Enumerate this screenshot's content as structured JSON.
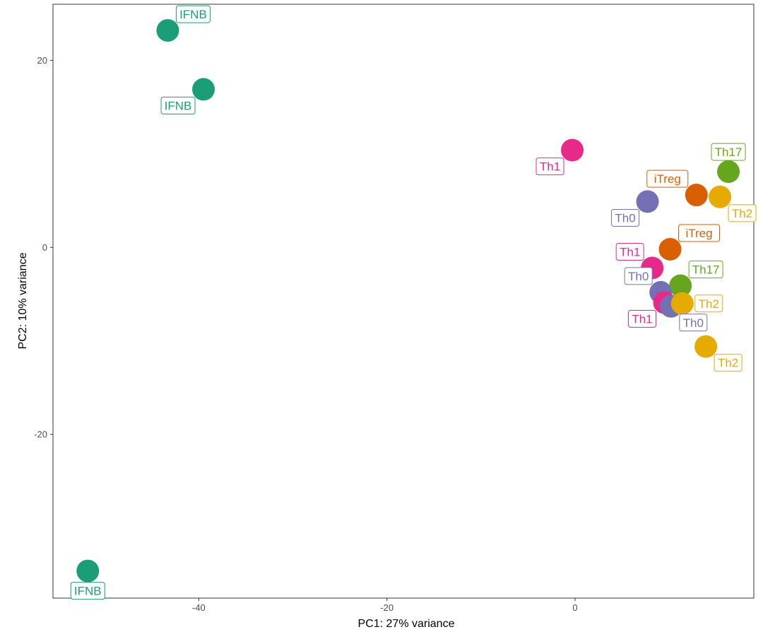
{
  "chart_data": {
    "type": "scatter",
    "title": "",
    "xlabel": "PC1: 27% variance",
    "ylabel": "PC2: 10% variance",
    "xlim": [
      -55.5,
      19
    ],
    "ylim": [
      -37.5,
      26
    ],
    "x_ticks": [
      {
        "value": -40,
        "label": "-40"
      },
      {
        "value": -20,
        "label": "-20"
      },
      {
        "value": 0,
        "label": "0"
      }
    ],
    "y_ticks": [
      {
        "value": 20,
        "label": "20"
      },
      {
        "value": 0,
        "label": "0"
      },
      {
        "value": -20,
        "label": "-20"
      }
    ],
    "grid": false,
    "legend": "none",
    "group_colors": {
      "IFNB": "#1b9e77",
      "Th1": "#e7298a",
      "Th0": "#7570b3",
      "iTreg": "#d95f02",
      "Th17": "#66a61e",
      "Th2": "#e6ab02"
    },
    "points": [
      {
        "x": -43.3,
        "y": 23.2,
        "label": "IFNB",
        "group": "IFNB",
        "label_pos": "ne"
      },
      {
        "x": -39.5,
        "y": 16.9,
        "label": "IFNB",
        "group": "IFNB",
        "label_pos": "sw"
      },
      {
        "x": -51.8,
        "y": -34.6,
        "label": "IFNB",
        "group": "IFNB",
        "label_pos": "s"
      },
      {
        "x": -0.3,
        "y": 10.4,
        "label": "Th1",
        "group": "Th1",
        "label_pos": "sw"
      },
      {
        "x": 7.7,
        "y": 4.9,
        "label": "Th0",
        "group": "Th0",
        "label_pos": "sw"
      },
      {
        "x": 12.9,
        "y": 5.6,
        "label": "iTreg",
        "group": "iTreg",
        "label_pos": "nw"
      },
      {
        "x": 15.4,
        "y": 5.4,
        "label": "Th2",
        "group": "Th2",
        "label_pos": "se"
      },
      {
        "x": 16.3,
        "y": 8.1,
        "label": "Th17",
        "group": "Th17",
        "label_pos": "n"
      },
      {
        "x": 10.1,
        "y": -0.2,
        "label": "iTreg",
        "group": "iTreg",
        "label_pos": "ne"
      },
      {
        "x": 8.2,
        "y": -2.2,
        "label": "Th1",
        "group": "Th1",
        "label_pos": "nw"
      },
      {
        "x": 11.2,
        "y": -4.1,
        "label": "Th17",
        "group": "Th17",
        "label_pos": "ne"
      },
      {
        "x": 9.1,
        "y": -4.8,
        "label": "Th0",
        "group": "Th0",
        "label_pos": "nw"
      },
      {
        "x": 9.5,
        "y": -5.9,
        "label": "Th1",
        "group": "Th1",
        "label_pos": "sw"
      },
      {
        "x": 10.2,
        "y": -6.3,
        "label": "Th0",
        "group": "Th0",
        "label_pos": "se"
      },
      {
        "x": 11.4,
        "y": -6.0,
        "label": "Th2",
        "group": "Th2",
        "label_pos": "e"
      },
      {
        "x": 13.9,
        "y": -10.6,
        "label": "Th2",
        "group": "Th2",
        "label_pos": "se"
      }
    ]
  }
}
